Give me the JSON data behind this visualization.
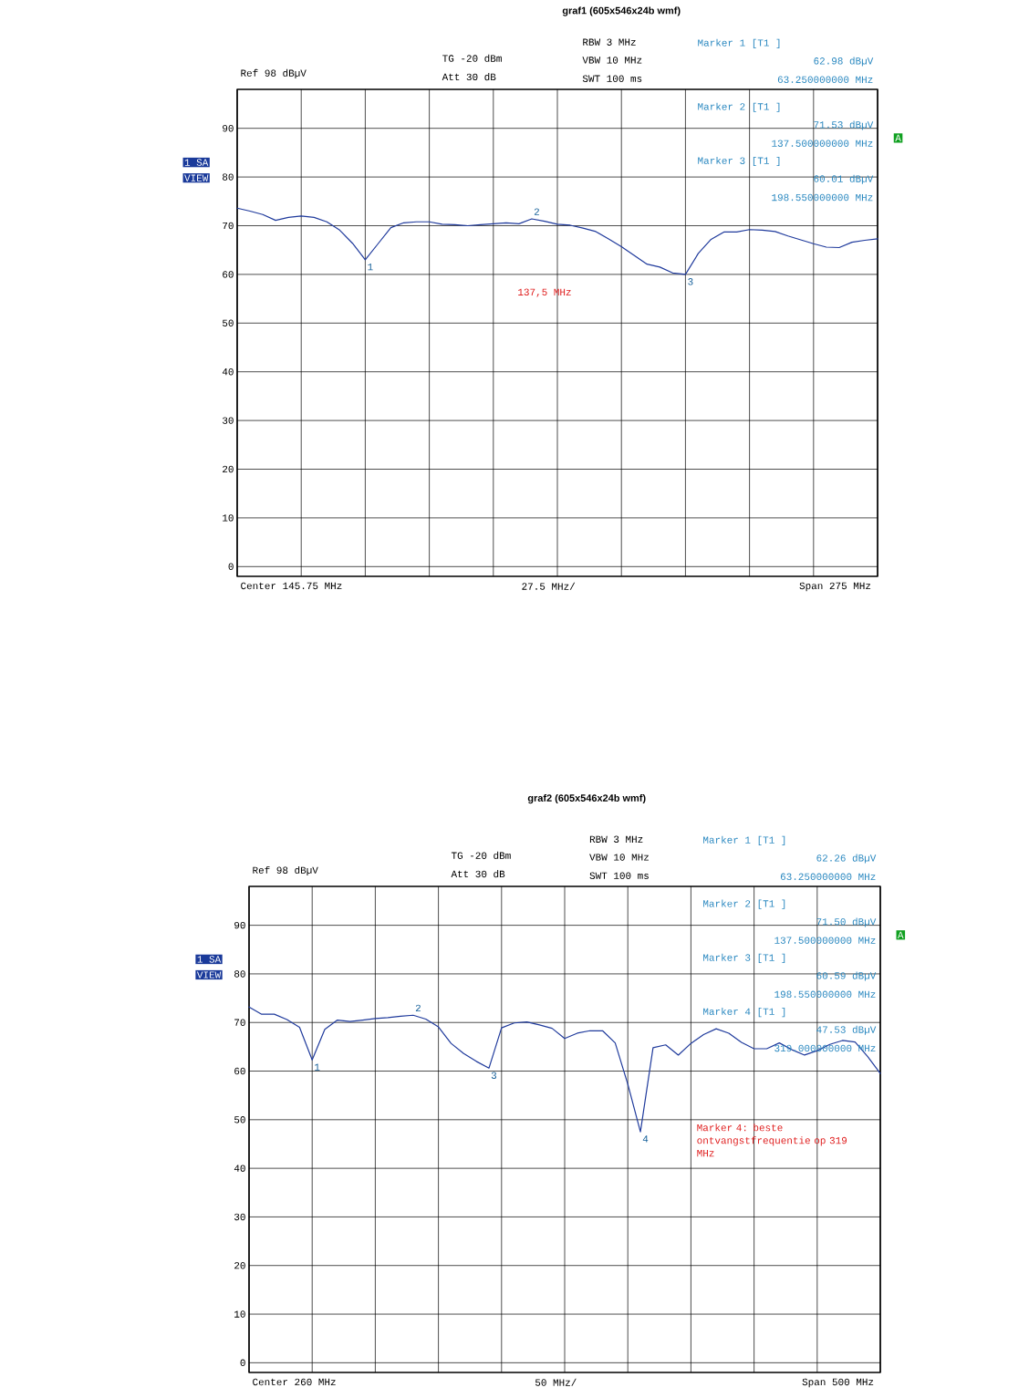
{
  "chart_data": [
    {
      "type": "line",
      "title": "graf1 (605x546x24b wmf)",
      "categories": [
        null,
        null,
        null,
        null,
        null,
        null,
        null,
        null,
        null,
        null,
        null,
        null,
        null,
        null,
        null,
        null,
        null,
        null,
        null,
        null,
        null,
        null,
        null,
        null,
        null,
        null,
        null,
        null,
        null,
        null,
        null,
        null,
        null,
        null,
        null,
        null,
        null,
        null,
        null,
        null,
        null,
        null,
        null,
        null,
        null,
        null,
        null,
        null,
        null,
        null,
        null
      ],
      "ylim": [
        -2,
        98
      ],
      "yticks": [
        0,
        10,
        20,
        30,
        40,
        50,
        60,
        70,
        80,
        90
      ],
      "grid": true,
      "series": [
        {
          "color": "#1f3a9c",
          "values": [
            73.6,
            73.0,
            72.3,
            71.1,
            71.7,
            72.0,
            71.7,
            70.8,
            69.1,
            66.4,
            63.0,
            66.3,
            69.6,
            70.6,
            70.8,
            70.8,
            70.3,
            70.2,
            70.0,
            70.2,
            70.4,
            70.6,
            70.4,
            71.4,
            70.9,
            70.3,
            70.1,
            69.5,
            68.8,
            67.3,
            65.7,
            63.9,
            62.1,
            61.5,
            60.3,
            60.0,
            64.3,
            67.2,
            68.7,
            68.7,
            69.2,
            69.1,
            68.8,
            67.9,
            67.1,
            66.3,
            65.6,
            65.5,
            66.6,
            67.0,
            67.3
          ],
          "line_style": "solid"
        }
      ],
      "annotations": [
        "Ref  98 dBµV",
        "TG  -20 dBm",
        "Att  30 dB",
        "RBW 3 MHz",
        "VBW 10 MHz",
        "SWT 100 ms",
        "1 SA",
        "VIEW",
        "A",
        "Center 145.75 MHz",
        "27.5 MHz/",
        "Span 275 MHz",
        "137,5 MHz",
        "Marker 1 [T1 ]",
        "62.98 dBµV",
        "63.250000000 MHz",
        "Marker 2 [T1 ]",
        "71.53 dBµV",
        "137.500000000 MHz",
        "Marker 3 [T1 ]",
        "60.01 dBµV",
        "198.550000000 MHz",
        {
          "text": "1",
          "y": 63.0
        },
        {
          "text": "2",
          "y": 71.4
        },
        {
          "text": "3",
          "y": 60.0
        }
      ]
    },
    {
      "type": "line",
      "title": "graf2 (605x546x24b wmf)",
      "categories": [
        null,
        null,
        null,
        null,
        null,
        null,
        null,
        null,
        null,
        null,
        null,
        null,
        null,
        null,
        null,
        null,
        null,
        null,
        null,
        null,
        null,
        null,
        null,
        null,
        null,
        null,
        null,
        null,
        null,
        null,
        null,
        null,
        null,
        null,
        null,
        null,
        null,
        null,
        null,
        null,
        null,
        null,
        null,
        null,
        null,
        null,
        null,
        null,
        null,
        null,
        null
      ],
      "ylim": [
        -2,
        98
      ],
      "yticks": [
        0,
        10,
        20,
        30,
        40,
        50,
        60,
        70,
        80,
        90
      ],
      "grid": true,
      "series": [
        {
          "color": "#1f3a9c",
          "values": [
            73.2,
            71.7,
            71.7,
            70.6,
            69.0,
            62.3,
            68.6,
            70.5,
            70.2,
            70.5,
            70.8,
            71.0,
            71.3,
            71.5,
            70.7,
            69.1,
            65.7,
            63.6,
            62.0,
            60.6,
            68.9,
            69.9,
            70.1,
            69.5,
            68.8,
            66.7,
            67.8,
            68.3,
            68.3,
            65.8,
            57.3,
            47.5,
            64.8,
            65.4,
            63.3,
            65.7,
            67.5,
            68.7,
            67.8,
            65.9,
            64.6,
            64.6,
            65.8,
            64.4,
            63.3,
            64.2,
            65.5,
            66.3,
            66.0,
            63.0,
            59.5
          ],
          "line_style": "solid"
        }
      ],
      "annotations": [
        "Ref  98 dBµV",
        "TG  -20 dBm",
        "Att  30 dB",
        "RBW 3 MHz",
        "VBW 10 MHz",
        "SWT 100 ms",
        "1 SA",
        "VIEW",
        "A",
        "Center 260 MHz",
        "50 MHz/",
        "Span 500 MHz",
        "Marker 4: beste ontvangstfrequentie op 319 MHz",
        "Marker 1 [T1 ]",
        "62.26 dBµV",
        "63.250000000 MHz",
        "Marker 2 [T1 ]",
        "71.50 dBµV",
        "137.500000000 MHz",
        "Marker 3 [T1 ]",
        "60.59 dBµV",
        "198.550000000 MHz",
        "Marker 4 [T1 ]",
        "47.53 dBµV",
        "319.000000000 MHz",
        {
          "text": "1",
          "y": 62.3
        },
        {
          "text": "2",
          "y": 71.5
        },
        {
          "text": "3",
          "y": 60.6
        },
        {
          "text": "4",
          "y": 47.5
        }
      ]
    }
  ]
}
